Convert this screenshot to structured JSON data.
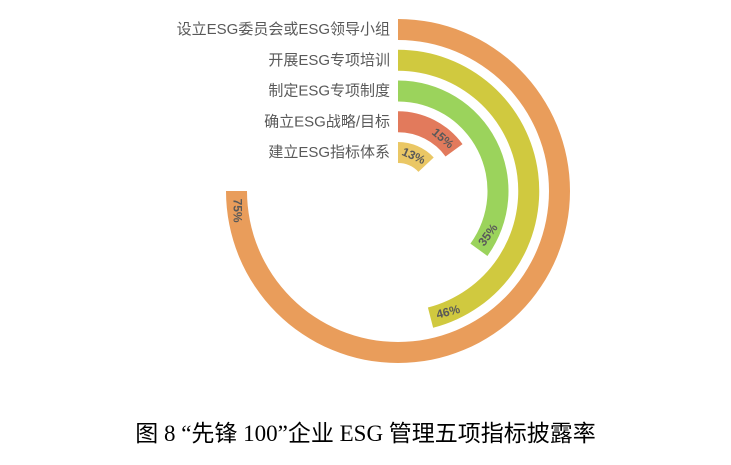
{
  "page": {
    "background_color": "#ffffff"
  },
  "chart_data": {
    "type": "bar",
    "variant": "radial-polar",
    "title": "图 8  “先锋 100”企业 ESG 管理五项指标披露率",
    "categories": [
      "设立ESG委员会或ESG领导小组",
      "开展ESG专项培训",
      "制定ESG专项制度",
      "确立ESG战略/目标",
      "建立ESG指标体系"
    ],
    "values": [
      75,
      46,
      35,
      15,
      13
    ],
    "value_labels": [
      "75%",
      "46%",
      "35%",
      "15%",
      "13%"
    ],
    "series_colors": [
      "#E99D5B",
      "#D0C93F",
      "#9BD35C",
      "#E27A5C",
      "#EAC765"
    ],
    "unit": "%",
    "value_range": [
      0,
      100
    ],
    "angle_full_turn_value": 100,
    "start_position": "top",
    "direction": "clockwise",
    "category_label_color": "#595959",
    "value_label_color": "#595959",
    "legend": "none",
    "grid": "off",
    "background": "#ffffff"
  },
  "caption": {
    "text": "图 8  “先锋 100”企业 ESG 管理五项指标披露率"
  }
}
